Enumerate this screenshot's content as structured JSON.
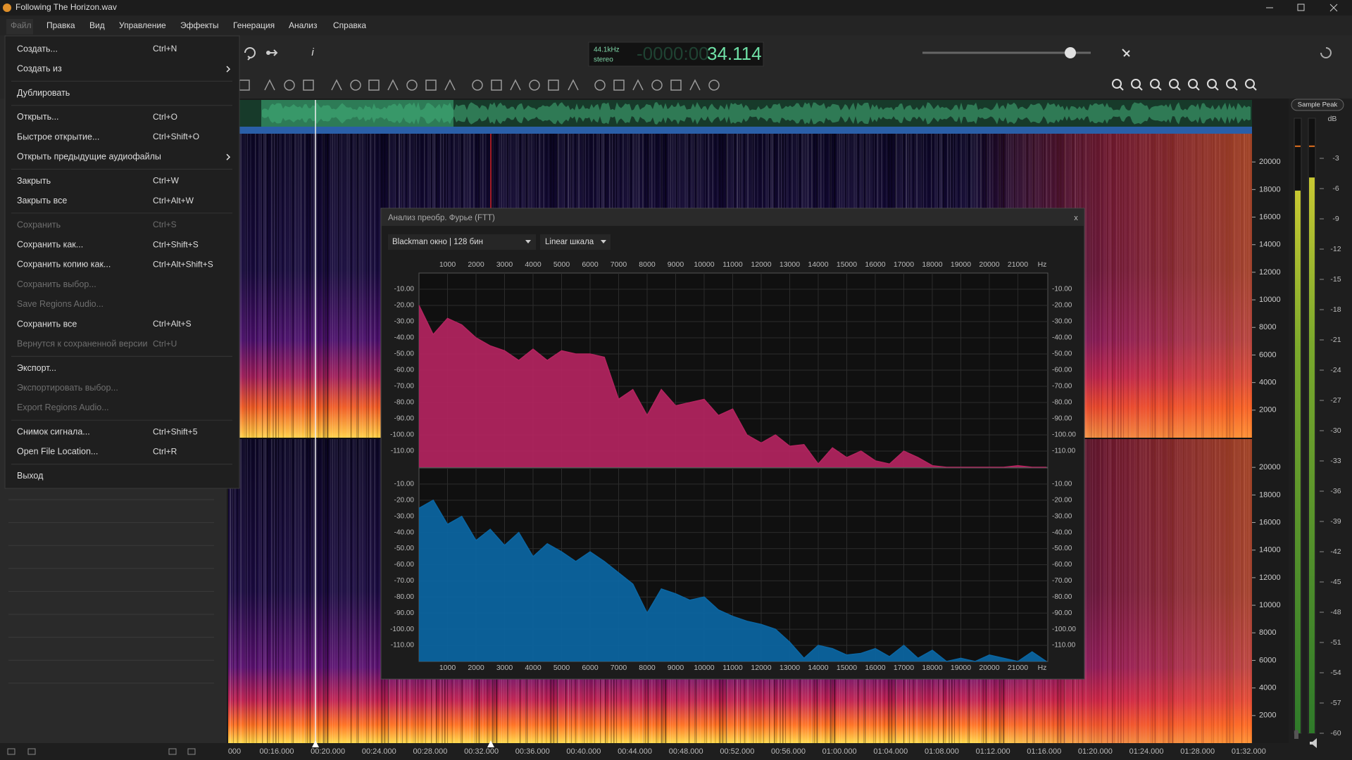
{
  "window": {
    "title": "Following The Horizon.wav"
  },
  "menubar": [
    "Файл",
    "Правка",
    "Вид",
    "Управление",
    "Эффекты",
    "Генерация",
    "Анализ",
    "Справка"
  ],
  "file_menu": [
    [
      {
        "label": "Создать...",
        "shortcut": "Ctrl+N"
      },
      {
        "label": "Создать из",
        "submenu": true
      }
    ],
    [
      {
        "label": "Дублировать"
      }
    ],
    [
      {
        "label": "Открыть...",
        "shortcut": "Ctrl+O"
      },
      {
        "label": "Быстрое открытие...",
        "shortcut": "Ctrl+Shift+O"
      },
      {
        "label": "Открыть предыдущие аудиофайлы",
        "submenu": true
      }
    ],
    [
      {
        "label": "Закрыть",
        "shortcut": "Ctrl+W"
      },
      {
        "label": "Закрыть все",
        "shortcut": "Ctrl+Alt+W"
      }
    ],
    [
      {
        "label": "Сохранить",
        "shortcut": "Ctrl+S",
        "disabled": true
      },
      {
        "label": "Сохранить как...",
        "shortcut": "Ctrl+Shift+S"
      },
      {
        "label": "Сохранить копию как...",
        "shortcut": "Ctrl+Alt+Shift+S"
      },
      {
        "label": "Сохранить выбор...",
        "disabled": true
      },
      {
        "label": "Save Regions Audio...",
        "disabled": true
      },
      {
        "label": "Сохранить все",
        "shortcut": "Ctrl+Alt+S"
      },
      {
        "label": "Вернутся к сохраненной версии",
        "shortcut": "Ctrl+U",
        "disabled": true
      }
    ],
    [
      {
        "label": "Экспорт..."
      },
      {
        "label": "Экспортировать выбор...",
        "disabled": true
      },
      {
        "label": "Export Regions Audio...",
        "disabled": true
      }
    ],
    [
      {
        "label": "Снимок сигнала...",
        "shortcut": "Ctrl+Shift+5"
      },
      {
        "label": "Open File Location...",
        "shortcut": "Ctrl+R"
      }
    ],
    [
      {
        "label": "Выход"
      }
    ]
  ],
  "transport": {
    "info": "i",
    "rate": "44.1kHz",
    "channels": "stereo",
    "time_ghost": "-0000:00",
    "time": "34.114"
  },
  "spectrogram": {
    "flim": [
      0,
      22050
    ],
    "freq_ticks": [
      2000,
      4000,
      6000,
      8000,
      10000,
      12000,
      14000,
      16000,
      18000,
      20000
    ]
  },
  "meter": {
    "title": "Sample Peak",
    "unit": "dB",
    "lim": [
      -60,
      0
    ],
    "ticks": [
      -3,
      -6,
      -9,
      -12,
      -15,
      -18,
      -21,
      -24,
      -27,
      -30,
      -33,
      -36,
      -39,
      -42,
      -45,
      -48,
      -51,
      -54,
      -57,
      -60
    ],
    "levels": [
      -6.2,
      -4.9
    ],
    "peaks": [
      -1.8,
      -1.8
    ]
  },
  "timeline": {
    "labels": [
      "000",
      "00:16.000",
      "00:20.000",
      "00:24.000",
      "00:28.000",
      "00:32.000",
      "00:36.000",
      "00:40.000",
      "00:44.000",
      "00:48.000",
      "00:52.000",
      "00:56.000",
      "01:00.000",
      "01:04.000",
      "01:08.000",
      "01:12.000",
      "01:16.000",
      "01:20.000",
      "01:24.000",
      "01:28.000",
      "01:32.000"
    ]
  },
  "fft": {
    "title": "Анализ преобр. Фурье (FTT)",
    "close": "x",
    "window_select": "Blackman окно | 128 бин",
    "scale_select": "Linear шкала",
    "unit": "Hz",
    "xlim": [
      0,
      22050
    ],
    "xticks": [
      1000,
      2000,
      3000,
      4000,
      5000,
      6000,
      7000,
      8000,
      9000,
      10000,
      11000,
      12000,
      13000,
      14000,
      15000,
      16000,
      17000,
      18000,
      19000,
      20000,
      21000
    ],
    "ylim": [
      -120,
      0
    ],
    "yticks": [
      {
        "value": -10,
        "label": "-10.00"
      },
      {
        "value": -20,
        "label": "-20.00"
      },
      {
        "value": -30,
        "label": "-30.00"
      },
      {
        "value": -40,
        "label": "-40.00"
      },
      {
        "value": -50,
        "label": "-50.00"
      },
      {
        "value": -60,
        "label": "-60.00"
      },
      {
        "value": -70,
        "label": "-70.00"
      },
      {
        "value": -80,
        "label": "-80.00"
      },
      {
        "value": -90,
        "label": "-90.00"
      },
      {
        "value": -100,
        "label": "-100.00"
      },
      {
        "value": -110,
        "label": "-110.00"
      }
    ],
    "x": [
      0,
      500,
      1000,
      1500,
      2000,
      2500,
      3000,
      3500,
      4000,
      4500,
      5000,
      5500,
      6000,
      6500,
      7000,
      7500,
      8000,
      8500,
      9000,
      9500,
      10000,
      10500,
      11000,
      11500,
      12000,
      12500,
      13000,
      13500,
      14000,
      14500,
      15000,
      15500,
      16000,
      16500,
      17000,
      17500,
      18000,
      18500,
      19000,
      19500,
      20000,
      20500,
      21000,
      21500,
      22000
    ],
    "panels": [
      {
        "color": "#b3245f",
        "values": [
          -20,
          -38,
          -28,
          -32,
          -40,
          -45,
          -48,
          -54,
          -47,
          -54,
          -48,
          -50,
          -50,
          -52,
          -78,
          -72,
          -88,
          -72,
          -82,
          -80,
          -78,
          -88,
          -84,
          -100,
          -105,
          -100,
          -107,
          -106,
          -118,
          -108,
          -114,
          -110,
          -116,
          -118,
          -110,
          -114,
          -119,
          -120,
          -120,
          -120,
          -120,
          -120,
          -119,
          -120,
          -120
        ]
      },
      {
        "color": "#0b66a3",
        "values": [
          -25,
          -20,
          -35,
          -30,
          -45,
          -38,
          -48,
          -40,
          -55,
          -47,
          -52,
          -58,
          -52,
          -58,
          -65,
          -72,
          -90,
          -75,
          -78,
          -82,
          -80,
          -88,
          -92,
          -95,
          -97,
          -100,
          -108,
          -118,
          -110,
          -112,
          -116,
          -115,
          -112,
          -117,
          -110,
          -118,
          -113,
          -120,
          -118,
          -120,
          -116,
          -118,
          -120,
          -114,
          -120
        ]
      }
    ]
  }
}
